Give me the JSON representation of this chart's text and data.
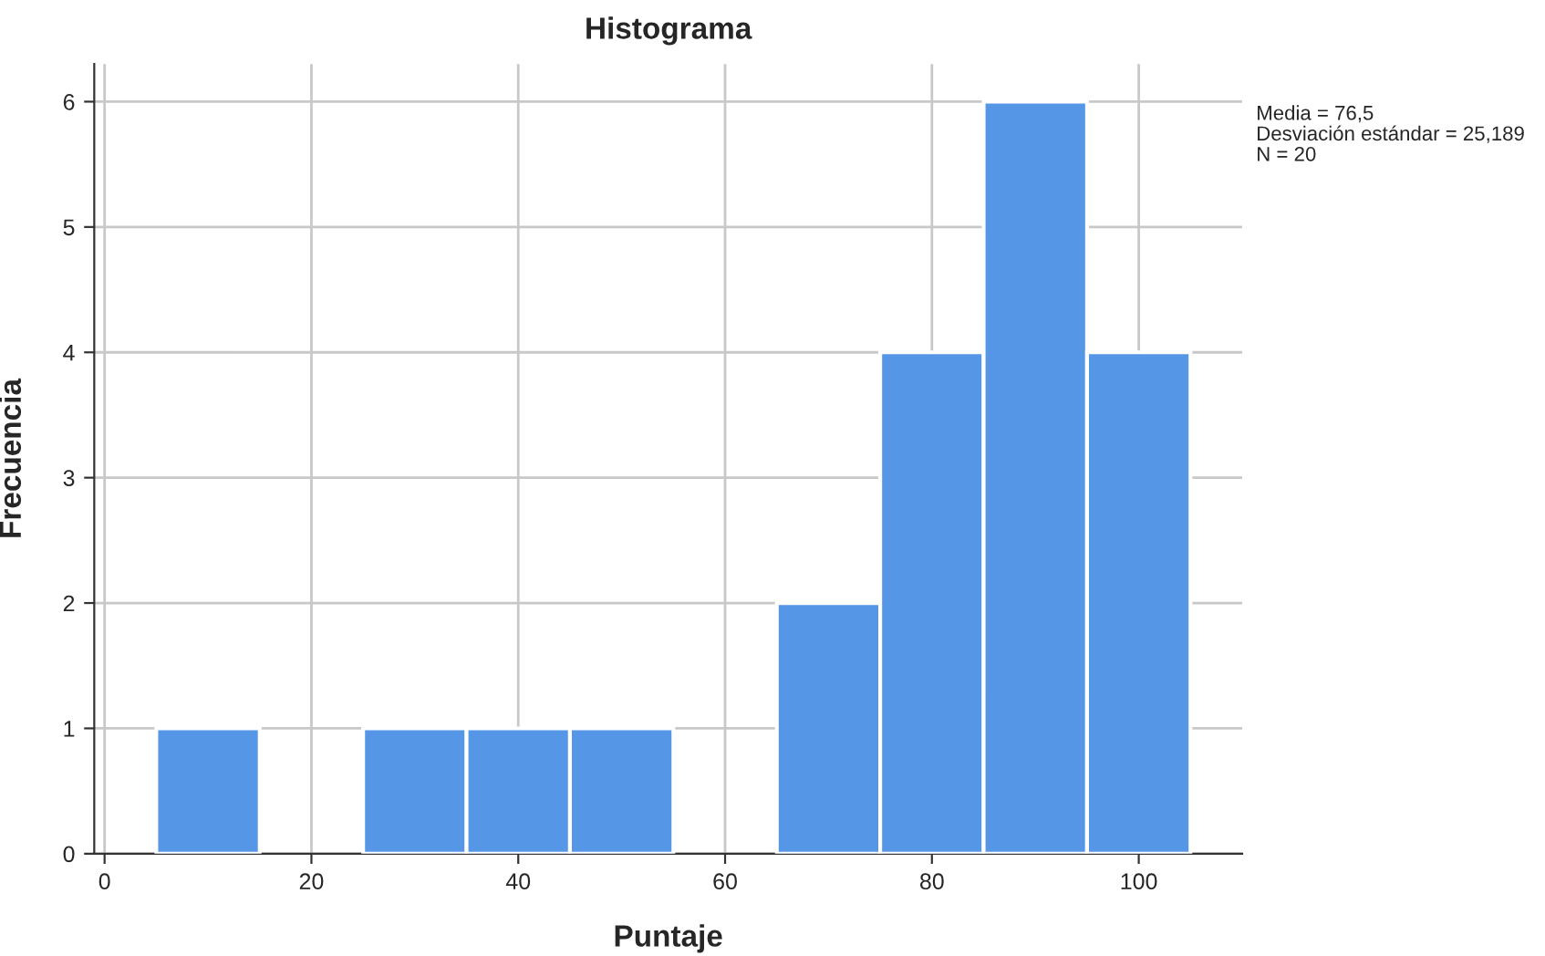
{
  "chart_data": {
    "type": "histogram",
    "title": "Histograma",
    "xlabel": "Puntaje",
    "ylabel": "Frecuencia",
    "bins": [
      5,
      15,
      25,
      35,
      45,
      55,
      65,
      75,
      85,
      95,
      105
    ],
    "values": [
      1,
      0,
      1,
      1,
      1,
      0,
      2,
      4,
      6,
      4
    ],
    "color": "#5596e6",
    "xlim": [
      -1,
      110
    ],
    "xticks": [
      0,
      20,
      40,
      60,
      80,
      100
    ],
    "ylim": [
      0,
      6.3
    ],
    "yticks": [
      0,
      1,
      2,
      3,
      4,
      5,
      6
    ],
    "grid": true,
    "legend": false,
    "annotations": [
      "Media = 76,5",
      "Desviación estándar = 25,189",
      "N = 20"
    ]
  }
}
